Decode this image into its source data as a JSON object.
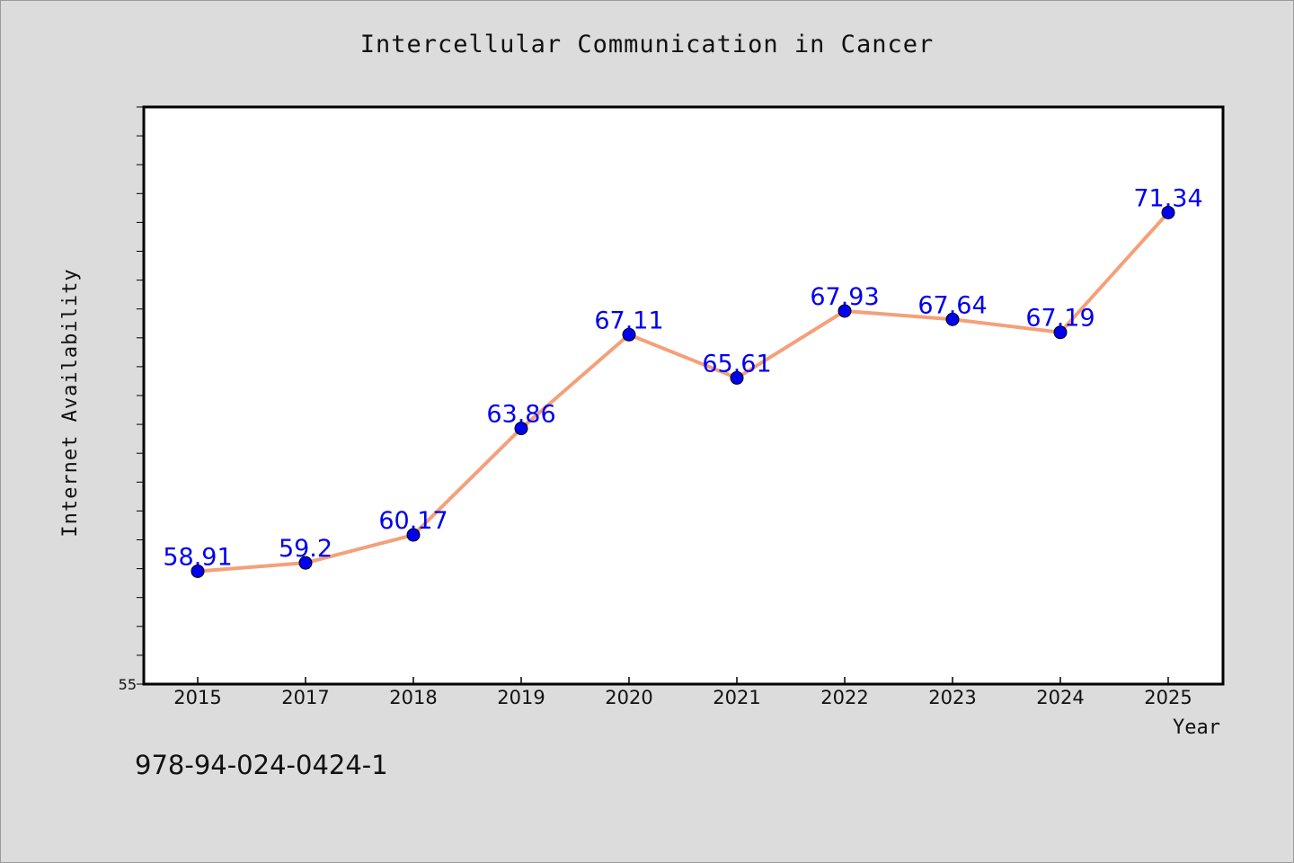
{
  "chart_data": {
    "type": "line",
    "title": "Intercellular Communication in Cancer",
    "xlabel": "Year",
    "ylabel": "Internet Availability",
    "categories": [
      "2015",
      "2017",
      "2018",
      "2019",
      "2020",
      "2021",
      "2022",
      "2023",
      "2024",
      "2025"
    ],
    "series": [
      {
        "values": [
          58.91,
          59.2,
          60.17,
          63.86,
          67.11,
          65.61,
          67.93,
          67.64,
          67.19,
          71.34
        ],
        "data_labels": [
          "58.91",
          "59.2",
          "60.17",
          "63.86",
          "67.11",
          "65.61",
          "67.93",
          "67.64",
          "67.19",
          "71.34"
        ],
        "line_color": "#f4a07a",
        "marker_color": "#0000ee",
        "label_color": "#0000ee"
      }
    ],
    "ylim": [
      55,
      75
    ],
    "y_tick_labels": [
      "55"
    ],
    "grid": false,
    "legend": "none"
  },
  "footer": {
    "code": "978-94-024-0424-1"
  },
  "colors": {
    "background": "#dcdcdc",
    "plot_area": "#ffffff",
    "axis": "#000000"
  }
}
